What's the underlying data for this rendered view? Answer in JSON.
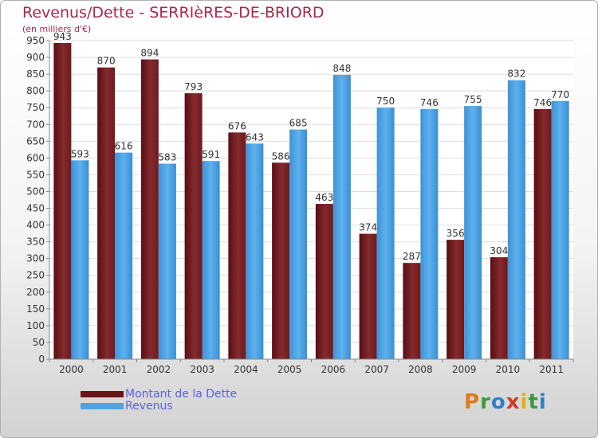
{
  "title": "Revenus/Dette - SERRIèRES-DE-BRIORD",
  "subtitle": "(en milliers d'€)",
  "logo_text": "Proxiti",
  "chart_data": {
    "type": "bar",
    "categories": [
      "2000",
      "2001",
      "2002",
      "2003",
      "2004",
      "2005",
      "2006",
      "2007",
      "2008",
      "2009",
      "2010",
      "2011"
    ],
    "series": [
      {
        "name": "Montant de la Dette",
        "color": "#7a1f24",
        "values": [
          943,
          870,
          894,
          793,
          676,
          586,
          463,
          374,
          287,
          356,
          304,
          746
        ]
      },
      {
        "name": "Revenus",
        "color": "#4ea3e4",
        "values": [
          593,
          616,
          583,
          591,
          643,
          685,
          848,
          750,
          746,
          755,
          832,
          770
        ]
      }
    ],
    "ylim": [
      0,
      950
    ],
    "ytick_step": 50,
    "grid": true,
    "legend_position": "bottom-left"
  }
}
